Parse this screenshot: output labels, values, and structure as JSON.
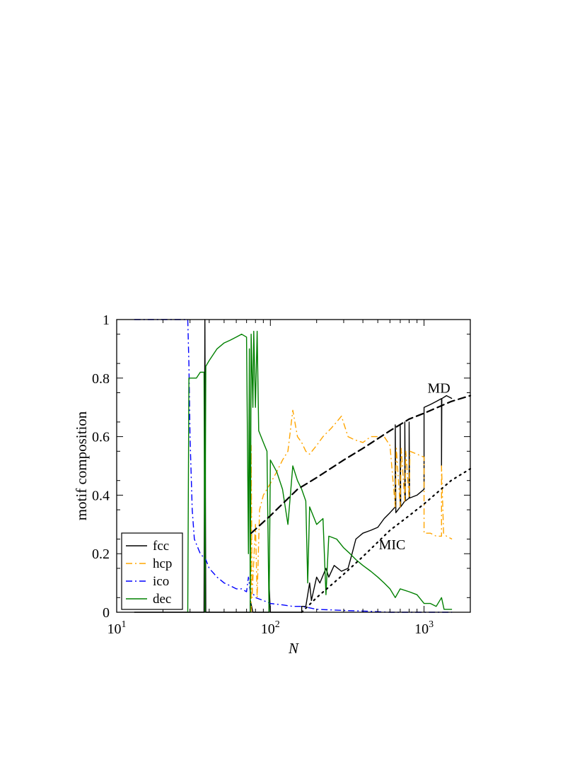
{
  "chart_data": {
    "type": "line",
    "xlabel": "N",
    "ylabel": "motif composition",
    "x_scale": "log",
    "xlim": [
      10,
      2000
    ],
    "ylim": [
      0,
      1
    ],
    "grid": false,
    "legend_placement": "bottom-left",
    "x_ticks": [
      {
        "value": 10,
        "base": "10",
        "exp": "1"
      },
      {
        "value": 100,
        "base": "10",
        "exp": "2"
      },
      {
        "value": 1000,
        "base": "10",
        "exp": "3"
      }
    ],
    "y_ticks": [
      {
        "value": 0,
        "label": "0"
      },
      {
        "value": 0.2,
        "label": "0.2"
      },
      {
        "value": 0.4,
        "label": "0.4"
      },
      {
        "value": 0.6,
        "label": "0.6"
      },
      {
        "value": 0.8,
        "label": "0.8"
      },
      {
        "value": 1,
        "label": "1"
      }
    ],
    "series": [
      {
        "name": "fcc",
        "color": "#000000",
        "dash": "solid",
        "points": [
          [
            13,
            0
          ],
          [
            37,
            0
          ],
          [
            37.5,
            1
          ],
          [
            38,
            0
          ],
          [
            74,
            0
          ],
          [
            74,
            0.04
          ],
          [
            77,
            0
          ],
          [
            98,
            0
          ],
          [
            98,
            0.1
          ],
          [
            100,
            0
          ],
          [
            160,
            0
          ],
          [
            160,
            0.02
          ],
          [
            170,
            0.02
          ],
          [
            175,
            0.06
          ],
          [
            180,
            0.1
          ],
          [
            185,
            0.04
          ],
          [
            200,
            0.12
          ],
          [
            210,
            0.1
          ],
          [
            230,
            0.15
          ],
          [
            240,
            0.12
          ],
          [
            260,
            0.16
          ],
          [
            290,
            0.14
          ],
          [
            320,
            0.15
          ],
          [
            340,
            0.2
          ],
          [
            360,
            0.25
          ],
          [
            400,
            0.27
          ],
          [
            450,
            0.28
          ],
          [
            500,
            0.29
          ],
          [
            550,
            0.32
          ],
          [
            600,
            0.34
          ],
          [
            650,
            0.36
          ],
          [
            650,
            0.64
          ],
          [
            655,
            0.34
          ],
          [
            700,
            0.36
          ],
          [
            700,
            0.64
          ],
          [
            705,
            0.36
          ],
          [
            750,
            0.38
          ],
          [
            750,
            0.65
          ],
          [
            755,
            0.38
          ],
          [
            800,
            0.39
          ],
          [
            800,
            0.65
          ],
          [
            805,
            0.39
          ],
          [
            900,
            0.4
          ],
          [
            1000,
            0.42
          ],
          [
            1000,
            0.7
          ],
          [
            1100,
            0.71
          ],
          [
            1200,
            0.72
          ],
          [
            1300,
            0.73
          ],
          [
            1300,
            0.5
          ],
          [
            1305,
            0.73
          ],
          [
            1400,
            0.74
          ],
          [
            1520,
            0.73
          ]
        ]
      },
      {
        "name": "hcp",
        "color": "#ffa500",
        "dash": "dash-dot",
        "points": [
          [
            75,
            0
          ],
          [
            75,
            0.57
          ],
          [
            76,
            0.05
          ],
          [
            80,
            0.3
          ],
          [
            82,
            0.05
          ],
          [
            85,
            0.35
          ],
          [
            90,
            0.4
          ],
          [
            100,
            0.44
          ],
          [
            110,
            0.48
          ],
          [
            120,
            0.52
          ],
          [
            130,
            0.55
          ],
          [
            140,
            0.69
          ],
          [
            150,
            0.6
          ],
          [
            160,
            0.58
          ],
          [
            170,
            0.55
          ],
          [
            180,
            0.54
          ],
          [
            200,
            0.57
          ],
          [
            220,
            0.6
          ],
          [
            250,
            0.63
          ],
          [
            270,
            0.65
          ],
          [
            290,
            0.67
          ],
          [
            320,
            0.6
          ],
          [
            350,
            0.59
          ],
          [
            400,
            0.58
          ],
          [
            450,
            0.6
          ],
          [
            500,
            0.6
          ],
          [
            550,
            0.6
          ],
          [
            600,
            0.57
          ],
          [
            650,
            0.36
          ],
          [
            660,
            0.56
          ],
          [
            700,
            0.36
          ],
          [
            710,
            0.56
          ],
          [
            750,
            0.38
          ],
          [
            760,
            0.55
          ],
          [
            800,
            0.39
          ],
          [
            810,
            0.55
          ],
          [
            900,
            0.54
          ],
          [
            1000,
            0.53
          ],
          [
            1000,
            0.27
          ],
          [
            1100,
            0.27
          ],
          [
            1200,
            0.26
          ],
          [
            1300,
            0.26
          ],
          [
            1300,
            0.5
          ],
          [
            1340,
            0.27
          ],
          [
            1400,
            0.26
          ],
          [
            1520,
            0.25
          ]
        ]
      },
      {
        "name": "ico",
        "color": "#0000ff",
        "dash": "dash-dot",
        "points": [
          [
            13,
            1
          ],
          [
            29,
            1
          ],
          [
            29.5,
            0.85
          ],
          [
            30,
            0.6
          ],
          [
            31,
            0.35
          ],
          [
            32,
            0.25
          ],
          [
            35,
            0.2
          ],
          [
            38,
            0.18
          ],
          [
            40,
            0.15
          ],
          [
            45,
            0.12
          ],
          [
            50,
            0.1
          ],
          [
            55,
            0.09
          ],
          [
            60,
            0.08
          ],
          [
            65,
            0.08
          ],
          [
            70,
            0.07
          ],
          [
            72,
            0.12
          ],
          [
            74,
            0.07
          ],
          [
            78,
            0.06
          ],
          [
            80,
            0.05
          ],
          [
            90,
            0.04
          ],
          [
            100,
            0.03
          ],
          [
            120,
            0.025
          ],
          [
            140,
            0.02
          ],
          [
            160,
            0.02
          ],
          [
            180,
            0.015
          ],
          [
            200,
            0.01
          ],
          [
            250,
            0.008
          ],
          [
            300,
            0.006
          ],
          [
            400,
            0.004
          ],
          [
            500,
            0.002
          ],
          [
            600,
            0
          ],
          [
            1520,
            0
          ]
        ]
      },
      {
        "name": "dec",
        "color": "#008000",
        "dash": "solid",
        "points": [
          [
            29,
            0
          ],
          [
            29.5,
            0.8
          ],
          [
            31,
            0.8
          ],
          [
            33,
            0.8
          ],
          [
            35,
            0.82
          ],
          [
            37,
            0.82
          ],
          [
            37.5,
            0
          ],
          [
            38,
            0.84
          ],
          [
            40,
            0.86
          ],
          [
            45,
            0.9
          ],
          [
            50,
            0.92
          ],
          [
            55,
            0.93
          ],
          [
            60,
            0.94
          ],
          [
            65,
            0.95
          ],
          [
            70,
            0.94
          ],
          [
            72,
            0.2
          ],
          [
            73,
            0.9
          ],
          [
            74,
            0
          ],
          [
            75,
            0.95
          ],
          [
            77,
            0.7
          ],
          [
            78,
            0.96
          ],
          [
            80,
            0.7
          ],
          [
            82,
            0.96
          ],
          [
            84,
            0.62
          ],
          [
            90,
            0.58
          ],
          [
            95,
            0.55
          ],
          [
            98,
            0
          ],
          [
            100,
            0.52
          ],
          [
            110,
            0.48
          ],
          [
            120,
            0.42
          ],
          [
            130,
            0.3
          ],
          [
            140,
            0.5
          ],
          [
            150,
            0.45
          ],
          [
            160,
            0.42
          ],
          [
            170,
            0.38
          ],
          [
            175,
            0.1
          ],
          [
            180,
            0.36
          ],
          [
            200,
            0.3
          ],
          [
            220,
            0.32
          ],
          [
            230,
            0.06
          ],
          [
            240,
            0.26
          ],
          [
            270,
            0.25
          ],
          [
            300,
            0.22
          ],
          [
            330,
            0.2
          ],
          [
            360,
            0.18
          ],
          [
            400,
            0.16
          ],
          [
            450,
            0.14
          ],
          [
            500,
            0.12
          ],
          [
            550,
            0.1
          ],
          [
            600,
            0.08
          ],
          [
            650,
            0.05
          ],
          [
            700,
            0.08
          ],
          [
            800,
            0.07
          ],
          [
            900,
            0.06
          ],
          [
            1000,
            0.03
          ],
          [
            1100,
            0.03
          ],
          [
            1200,
            0.02
          ],
          [
            1300,
            0.05
          ],
          [
            1350,
            0.01
          ],
          [
            1520,
            0.01
          ]
        ]
      }
    ],
    "fit_lines": [
      {
        "label": "MD",
        "style": "dashed",
        "points": [
          [
            75,
            0.27
          ],
          [
            100,
            0.33
          ],
          [
            150,
            0.42
          ],
          [
            200,
            0.46
          ],
          [
            300,
            0.52
          ],
          [
            400,
            0.56
          ],
          [
            600,
            0.62
          ],
          [
            800,
            0.66
          ],
          [
            1000,
            0.68
          ],
          [
            1500,
            0.72
          ],
          [
            2000,
            0.74
          ]
        ]
      },
      {
        "label": "MIC",
        "style": "dotted",
        "points": [
          [
            160,
            0
          ],
          [
            200,
            0.05
          ],
          [
            300,
            0.13
          ],
          [
            400,
            0.19
          ],
          [
            600,
            0.28
          ],
          [
            800,
            0.33
          ],
          [
            1000,
            0.37
          ],
          [
            1500,
            0.45
          ],
          [
            2000,
            0.49
          ]
        ]
      }
    ]
  }
}
